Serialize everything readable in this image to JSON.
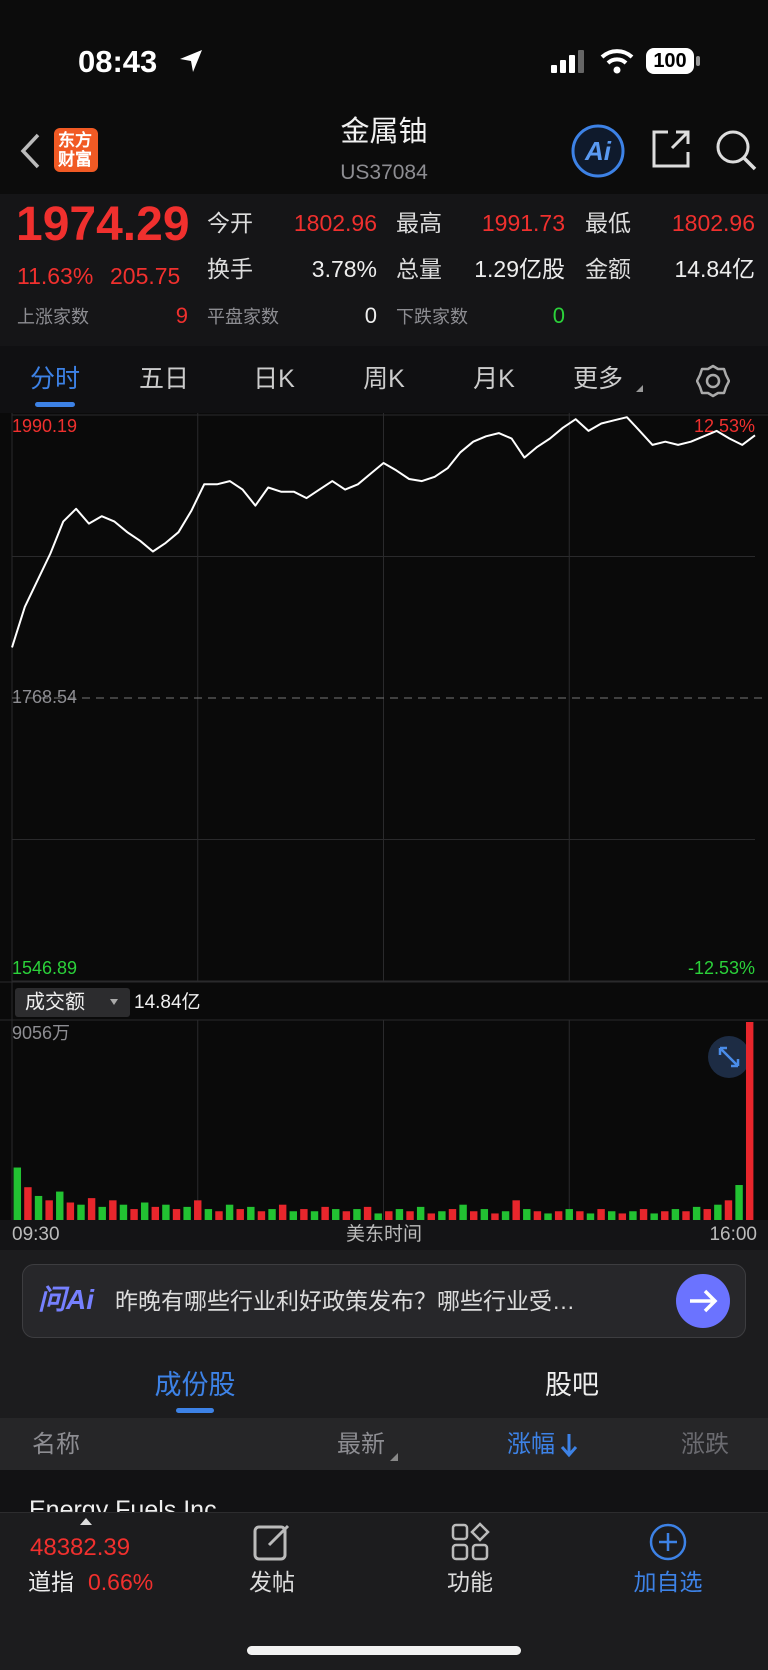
{
  "status_bar": {
    "time": "08:43",
    "battery": "100"
  },
  "header": {
    "logo_lines": [
      "东方",
      "财富"
    ],
    "title": "金属铀",
    "code": "US37084"
  },
  "quote": {
    "price": "1974.29",
    "change_pct": "11.63%",
    "change": "205.75",
    "fields": [
      {
        "label": "今开",
        "value": "1802.96"
      },
      {
        "label": "最高",
        "value": "1991.73"
      },
      {
        "label": "最低",
        "value": "1802.96"
      },
      {
        "label": "换手",
        "value": "3.78%"
      },
      {
        "label": "总量",
        "value": "1.29亿股"
      },
      {
        "label": "金额",
        "value": "14.84亿"
      }
    ],
    "breadth": [
      {
        "label": "上涨家数",
        "value": "9"
      },
      {
        "label": "平盘家数",
        "value": "0"
      },
      {
        "label": "下跌家数",
        "value": "0"
      }
    ]
  },
  "tabs": [
    "分时",
    "五日",
    "日K",
    "周K",
    "月K",
    "更多"
  ],
  "chart_data": [
    {
      "type": "line",
      "color": "#ffffff",
      "values": [
        1808.2,
        1839.9,
        1860.8,
        1881.7,
        1906.7,
        1916.7,
        1905.1,
        1910.9,
        1906.7,
        1898.4,
        1891.7,
        1883.3,
        1890.0,
        1898.4,
        1915.1,
        1935.9,
        1935.9,
        1938.4,
        1931.8,
        1919.2,
        1933.4,
        1930.1,
        1930.1,
        1925.1,
        1931.8,
        1938.4,
        1931.8,
        1935.9,
        1944.3,
        1952.6,
        1946.8,
        1940.1,
        1938.4,
        1941.8,
        1948.5,
        1961.0,
        1969.3,
        1973.5,
        1976.0,
        1971.8,
        1956.8,
        1965.2,
        1971.8,
        1980.2,
        1986.9,
        1977.7,
        1983.5,
        1986.0,
        1988.5,
        1977.7,
        1966.8,
        1969.3,
        1966.8,
        1969.3,
        1973.5,
        1977.7,
        1971.8,
        1966.8,
        1974.29
      ],
      "ylim": [
        1546.89,
        1990.19
      ],
      "yticks": [
        1990.19,
        1768.54,
        1546.89
      ],
      "y2lim": [
        -12.53,
        12.53
      ],
      "y2ticks": [
        {
          "value": 12.53,
          "label": "12.53%"
        },
        {
          "value": -12.53,
          "label": "-12.53%"
        }
      ]
    },
    {
      "type": "bar",
      "indicator": "成交额",
      "indicator_value": "14.84亿",
      "ylim": [
        0,
        9056
      ],
      "yticks": [
        {
          "value": 9056,
          "label": "9056万"
        }
      ],
      "xtick_labels": [
        "09:30",
        "16:00"
      ],
      "xlabel": "美东时间",
      "series": [
        {
          "color": "#22c232",
          "values": [
            2400,
            null,
            1100,
            null,
            1300,
            null,
            700,
            null,
            600,
            null,
            700,
            null,
            800,
            null,
            700,
            null,
            600,
            null,
            500,
            null,
            700,
            null,
            600,
            null,
            500,
            null,
            400,
            null,
            400,
            null,
            500,
            null,
            500,
            null,
            300,
            null,
            500,
            null,
            600,
            null,
            400,
            null,
            700,
            null,
            500,
            null,
            400,
            null,
            500,
            null,
            300,
            null,
            500,
            null,
            300,
            null,
            400,
            null,
            400,
            null,
            300,
            null,
            500,
            null,
            600,
            null,
            700,
            null,
            1600,
            null
          ]
        },
        {
          "color": "#e8262c",
          "values": [
            null,
            1500,
            null,
            900,
            null,
            800,
            null,
            1000,
            null,
            900,
            null,
            500,
            null,
            600,
            null,
            500,
            null,
            900,
            null,
            400,
            null,
            500,
            null,
            400,
            null,
            700,
            null,
            500,
            null,
            600,
            null,
            400,
            null,
            600,
            null,
            400,
            null,
            400,
            null,
            300,
            null,
            500,
            null,
            400,
            null,
            300,
            null,
            900,
            null,
            400,
            null,
            400,
            null,
            400,
            null,
            500,
            null,
            300,
            null,
            500,
            null,
            400,
            null,
            400,
            null,
            500,
            null,
            900,
            null,
            9056
          ]
        }
      ]
    }
  ],
  "ai_bar": {
    "logo": "问Ai",
    "prompt": "昨晚有哪些行业利好政策发布？哪些行业受…"
  },
  "section_tabs": [
    "成份股",
    "股吧"
  ],
  "table": {
    "columns": [
      "名称",
      "最新",
      "涨幅",
      "涨跌"
    ],
    "rows": [
      [
        "Energy Fuels Inc"
      ]
    ]
  },
  "bottom_nav": {
    "index_value": "48382.39",
    "index_name": "道指",
    "index_change": "0.66%",
    "items": [
      "发帖",
      "功能",
      "加自选"
    ]
  }
}
